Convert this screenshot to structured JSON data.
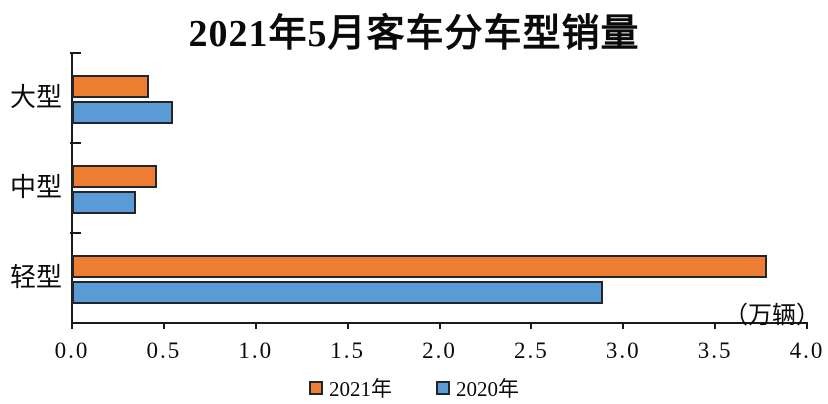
{
  "title": "2021年5月客车分车型销量",
  "unit_label": "（万辆）",
  "legend": {
    "items": [
      {
        "label": "2021年",
        "color": "#ED7D31"
      },
      {
        "label": "2020年",
        "color": "#5B9BD5"
      }
    ]
  },
  "chart_data": {
    "type": "bar",
    "orientation": "horizontal",
    "title": "2021年5月客车分车型销量",
    "xlabel": "（万辆）",
    "ylabel": "",
    "categories": [
      "大型",
      "中型",
      "轻型"
    ],
    "series": [
      {
        "name": "2021年",
        "color": "#ED7D31",
        "values": [
          0.42,
          0.46,
          3.78
        ]
      },
      {
        "name": "2020年",
        "color": "#5B9BD5",
        "values": [
          0.55,
          0.35,
          2.89
        ]
      }
    ],
    "xlim": [
      0.0,
      4.0
    ],
    "x_tick_labels": [
      "0.0",
      "0.5",
      "1.0",
      "1.5",
      "2.0",
      "2.5",
      "3.0",
      "3.5",
      "4.0"
    ],
    "grid": false,
    "legend_position": "bottom"
  }
}
